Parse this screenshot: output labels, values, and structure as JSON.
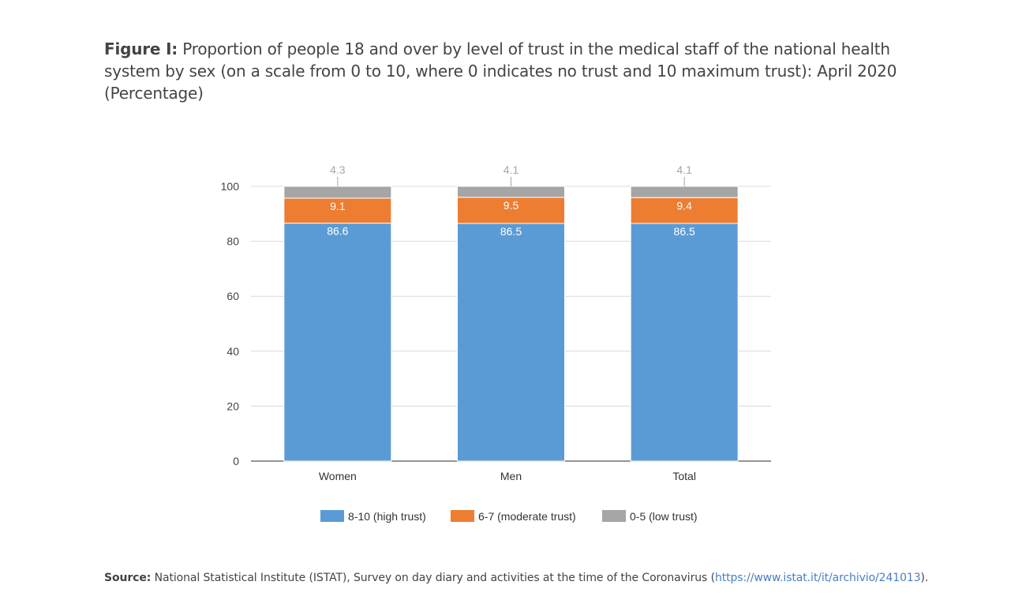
{
  "title": {
    "prefix": "Figure I:",
    "text": "Proportion of people 18 and over by level of trust in the medical staff of the national health system by sex (on a scale from 0 to 10, where 0 indicates no trust and 10 maximum trust): April 2020 (Percentage)"
  },
  "source": {
    "label": "Source:",
    "text": "National Statistical Institute (ISTAT), Survey on day diary and activities at the time of the Coronavirus (",
    "link": "https://www.istat.it/it/archivio/241013",
    "suffix": ")."
  },
  "chart_data": {
    "type": "bar",
    "stacked": true,
    "categories": [
      "Women",
      "Men",
      "Total"
    ],
    "series": [
      {
        "name": "8-10 (high trust)",
        "values": [
          86.6,
          86.5,
          86.5
        ],
        "color": "#5b9bd5"
      },
      {
        "name": "6-7 (moderate trust)",
        "values": [
          9.1,
          9.5,
          9.4
        ],
        "color": "#ed7d31"
      },
      {
        "name": "0-5 (low trust)",
        "values": [
          4.3,
          4.1,
          4.1
        ],
        "color": "#a5a5a5"
      }
    ],
    "yticks": [
      0,
      20,
      40,
      60,
      80,
      100
    ],
    "ylim": [
      0,
      100
    ],
    "grid": true,
    "legend": "bottom"
  }
}
